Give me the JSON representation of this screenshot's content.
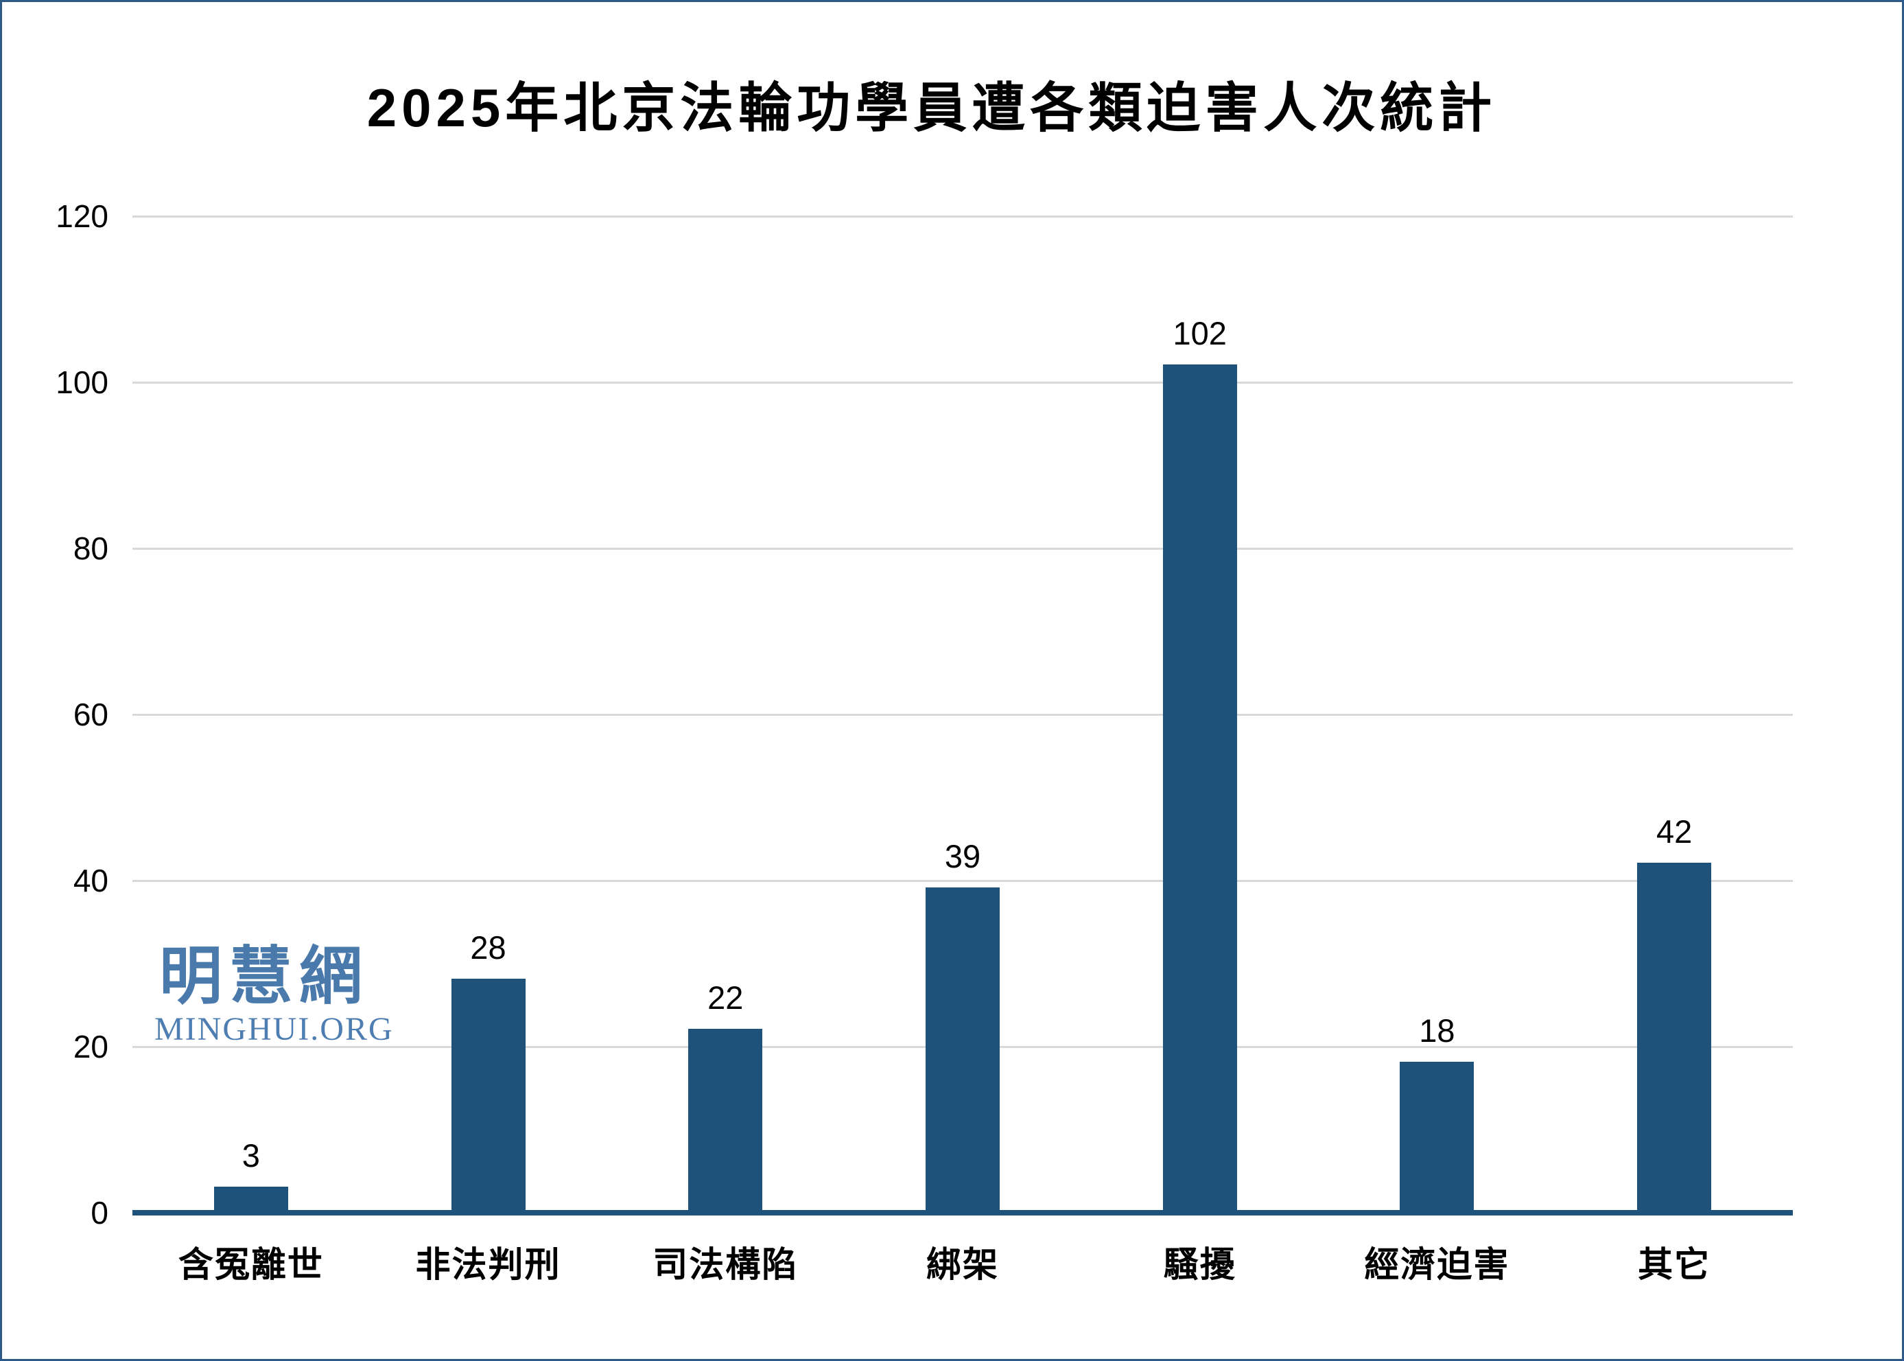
{
  "page": {
    "background_color": "#FFFFFF",
    "frame_border_color": "#2F5A88"
  },
  "watermark": {
    "cjk_text": "明慧網",
    "latin_text": "MINGHUI.ORG",
    "color": "#4A7AAC"
  },
  "chart_data": {
    "type": "bar",
    "title": "2025年北京法輪功學員遭各類迫害人次統計",
    "categories": [
      "含冤離世",
      "非法判刑",
      "司法構陷",
      "綁架",
      "騷擾",
      "經濟迫害",
      "其它"
    ],
    "values": [
      3,
      28,
      22,
      39,
      102,
      18,
      42
    ],
    "data_labels": [
      "3",
      "28",
      "22",
      "39",
      "102",
      "18",
      "42"
    ],
    "xlabel": "",
    "ylabel": "",
    "ylim": [
      0,
      120
    ],
    "yticks": [
      0,
      20,
      40,
      60,
      80,
      100,
      120
    ],
    "grid": "horizontal",
    "legend_position": "none",
    "bar_color": "#1F527B",
    "axis_line_color": "#1F527B",
    "gridline_color": "#D9D9D9",
    "text_color": "#000000"
  }
}
